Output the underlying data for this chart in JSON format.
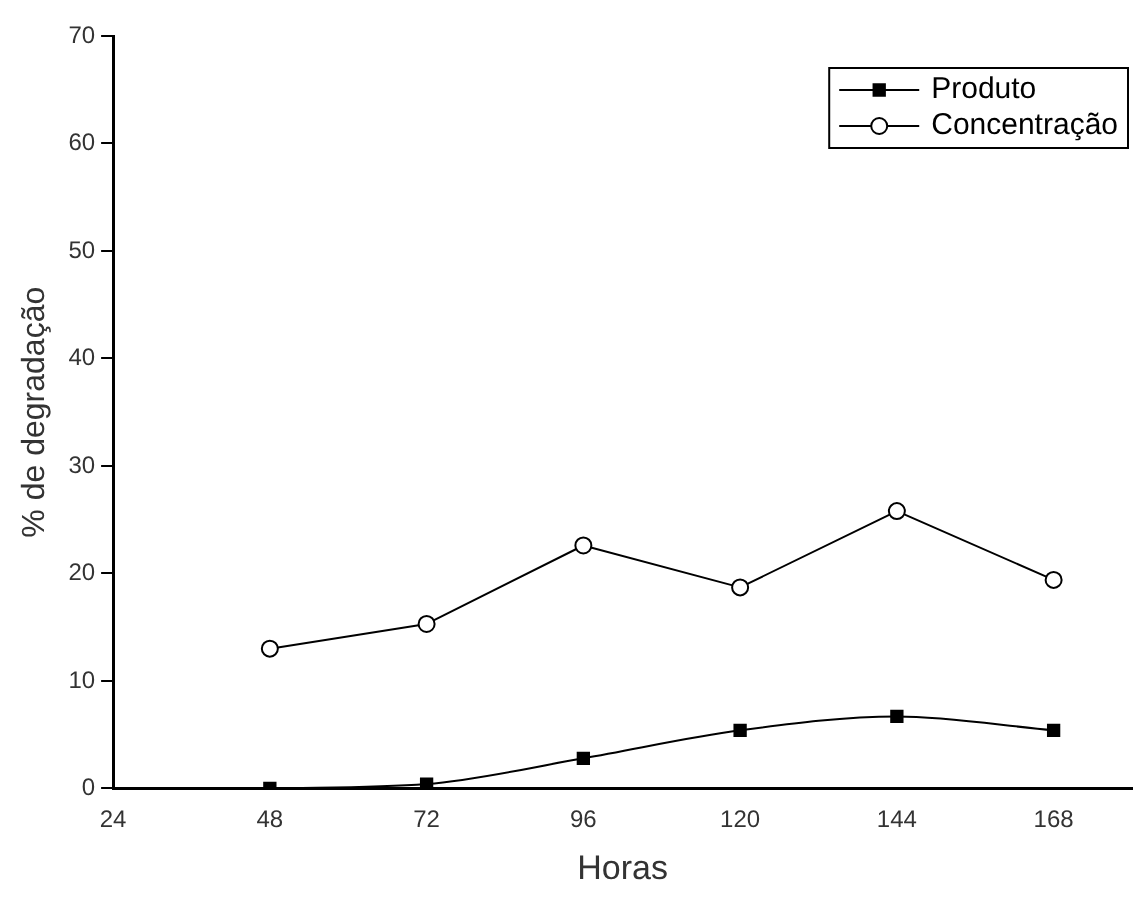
{
  "chart_data": {
    "type": "line",
    "xlabel": "Horas",
    "ylabel": "% de degradação",
    "x": [
      48,
      72,
      96,
      120,
      144,
      168
    ],
    "series": [
      {
        "name": "Produto",
        "color": "#000000",
        "marker": "square",
        "values": [
          0,
          0.4,
          2.8,
          5.4,
          6.7,
          5.4
        ]
      },
      {
        "name": "Concentração",
        "color": "#000000",
        "marker": "circle",
        "values": [
          13,
          15.3,
          22.6,
          18.7,
          25.8,
          19.4
        ]
      }
    ],
    "xlim": [
      24,
      180
    ],
    "xticks": [
      24,
      48,
      72,
      96,
      120,
      144,
      168
    ],
    "ylim": [
      0,
      70
    ],
    "yticks": [
      0,
      10,
      20,
      30,
      40,
      50,
      60,
      70
    ],
    "grid": false,
    "legend": "top right",
    "line_style": "solid"
  }
}
